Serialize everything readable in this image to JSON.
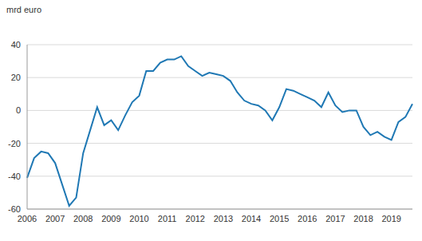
{
  "chart_data": {
    "type": "line",
    "title": "mrd euro",
    "categories": [
      "2006",
      null,
      null,
      null,
      "2007",
      null,
      null,
      null,
      "2008",
      null,
      null,
      null,
      "2009",
      null,
      null,
      null,
      "2010",
      null,
      null,
      null,
      "2011",
      null,
      null,
      null,
      "2012",
      null,
      null,
      null,
      "2013",
      null,
      null,
      null,
      "2014",
      null,
      null,
      null,
      "2015",
      null,
      null,
      null,
      "2016",
      null,
      null,
      null,
      "2017",
      null,
      null,
      null,
      "2018",
      null,
      null,
      null,
      "2019",
      null,
      null,
      null
    ],
    "values": [
      -41,
      -29,
      -25,
      -26,
      -32,
      -45,
      -58,
      -53,
      -26,
      -12,
      2,
      -9,
      -6,
      -12,
      -3,
      5,
      9,
      24,
      24,
      29,
      31,
      31,
      33,
      27,
      24,
      21,
      23,
      22,
      21,
      18,
      11,
      6,
      4,
      3,
      0,
      -6,
      2,
      13,
      12,
      10,
      8,
      6,
      2,
      11,
      3,
      -1,
      0,
      0,
      -10,
      -15,
      -13,
      -16,
      -18,
      -7,
      -4,
      4
    ],
    "color": "#1f78b4",
    "ylim": [
      -60,
      40
    ],
    "yticks": [
      -60,
      -40,
      -20,
      0,
      20,
      40
    ],
    "grid": true
  }
}
